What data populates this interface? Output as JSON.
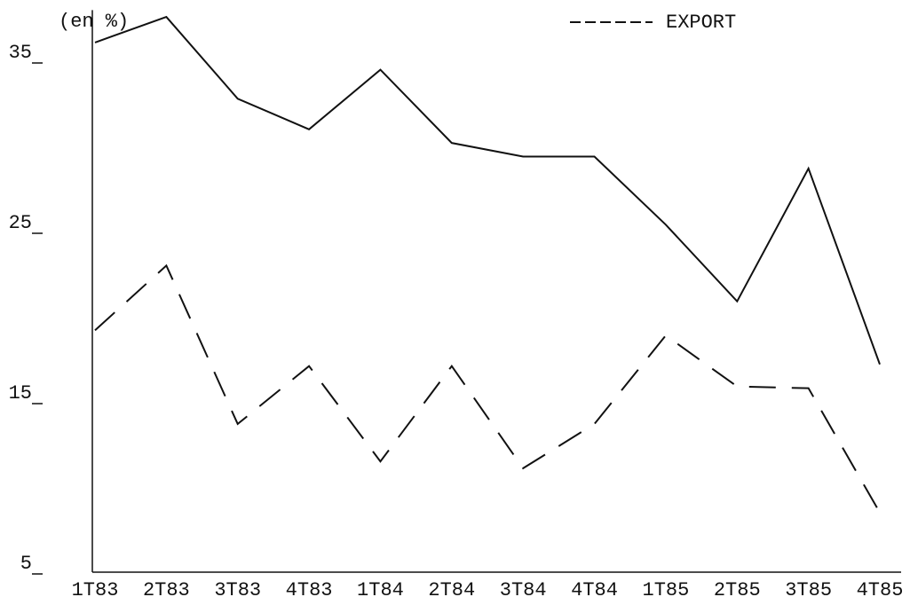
{
  "chart_data": {
    "type": "line",
    "y_label": "(en %)",
    "categories": [
      "1T83",
      "2T83",
      "3T83",
      "4T83",
      "1T84",
      "2T84",
      "3T84",
      "4T84",
      "1T85",
      "2T85",
      "3T85",
      "4T85"
    ],
    "series": [
      {
        "color": "#111111",
        "dash": false,
        "values": [
          36.1,
          37.6,
          32.8,
          31.0,
          34.5,
          30.2,
          29.4,
          29.4,
          25.4,
          20.9,
          28.7,
          17.2
        ]
      },
      {
        "name": "EXPORT",
        "color": "#111111",
        "dash": true,
        "values": [
          19.2,
          23.0,
          13.7,
          17.1,
          11.5,
          17.1,
          11.1,
          13.7,
          18.9,
          15.9,
          15.8,
          8.5
        ]
      }
    ],
    "ylim": [
      5,
      38
    ],
    "yticks": [
      5,
      15,
      25,
      35
    ],
    "grid": false,
    "legend": "top-right"
  }
}
